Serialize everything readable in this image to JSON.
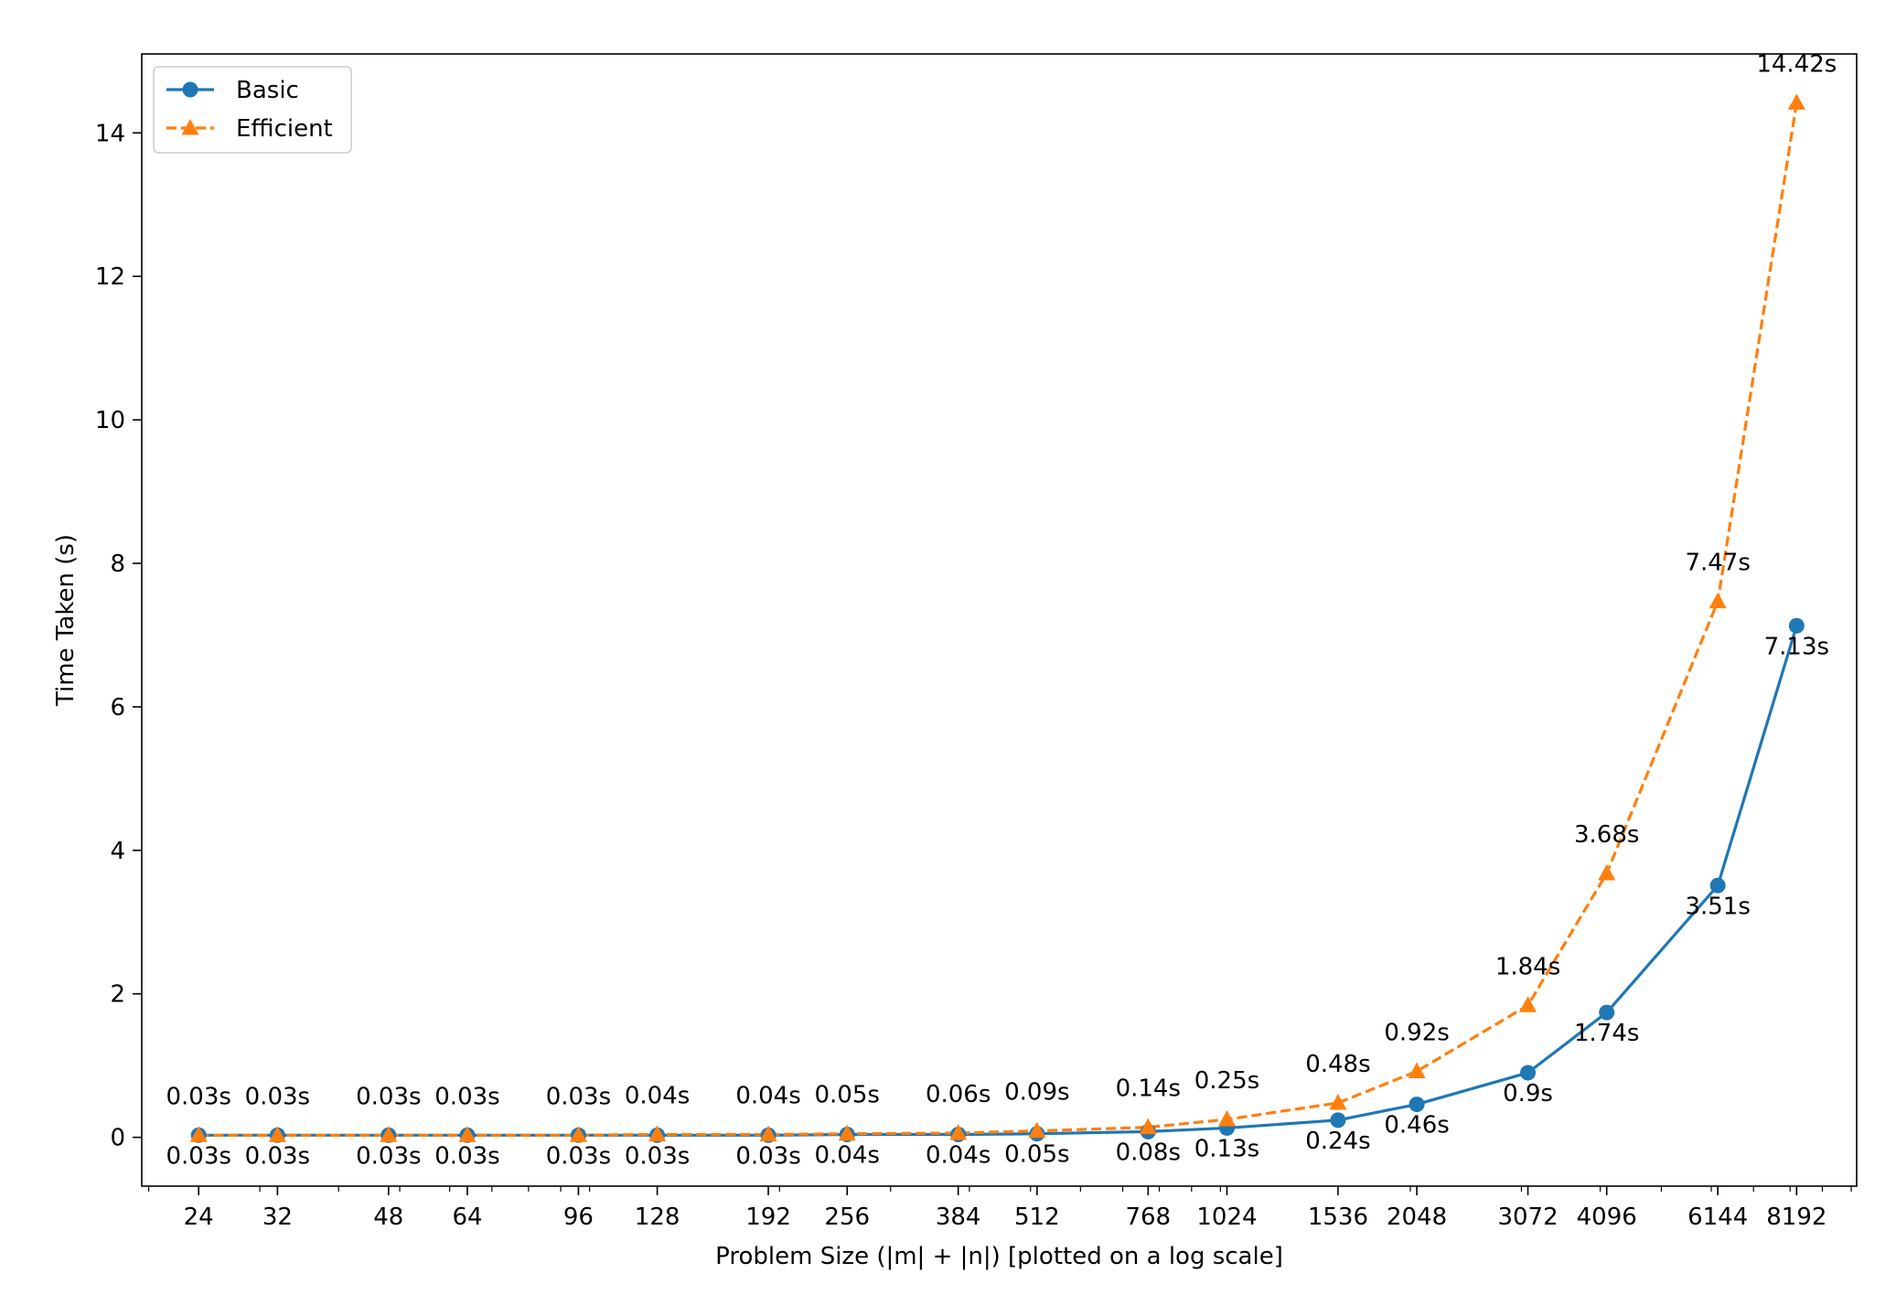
{
  "chart_data": {
    "type": "line",
    "xscale": "log",
    "x": [
      24,
      32,
      48,
      64,
      96,
      128,
      192,
      256,
      384,
      512,
      768,
      1024,
      1536,
      2048,
      3072,
      4096,
      6144,
      8192
    ],
    "x_tick_labels": [
      "24",
      "32",
      "48",
      "64",
      "96",
      "128",
      "192",
      "256",
      "384",
      "512",
      "768",
      "1024",
      "1536",
      "2048",
      "3072",
      "4096",
      "6144",
      "8192"
    ],
    "y_ticks": [
      0,
      2,
      4,
      6,
      8,
      10,
      12,
      14
    ],
    "y_tick_labels": [
      "0",
      "2",
      "4",
      "6",
      "8",
      "10",
      "12",
      "14"
    ],
    "ylim": [
      -0.68,
      15.1
    ],
    "xlim": [
      19.5,
      10200
    ],
    "xlabel": "Problem Size (|m| + |n|) [plotted on a log scale]",
    "ylabel": "Time Taken (s)",
    "legend_position": "top-left",
    "series": [
      {
        "name": "Basic",
        "color": "#1f77b4",
        "marker": "circle",
        "linestyle": "solid",
        "values": [
          0.03,
          0.03,
          0.03,
          0.03,
          0.03,
          0.03,
          0.03,
          0.04,
          0.04,
          0.05,
          0.08,
          0.13,
          0.24,
          0.46,
          0.9,
          1.74,
          3.51,
          7.13
        ],
        "labels": [
          "0.03s",
          "0.03s",
          "0.03s",
          "0.03s",
          "0.03s",
          "0.03s",
          "0.03s",
          "0.04s",
          "0.04s",
          "0.05s",
          "0.08s",
          "0.13s",
          "0.24s",
          "0.46s",
          "0.9s",
          "1.74s",
          "3.51s",
          "7.13s"
        ]
      },
      {
        "name": "Efficient",
        "color": "#ff7f0e",
        "marker": "triangle",
        "linestyle": "dashed",
        "values": [
          0.03,
          0.03,
          0.03,
          0.03,
          0.03,
          0.04,
          0.04,
          0.05,
          0.06,
          0.09,
          0.14,
          0.25,
          0.48,
          0.92,
          1.84,
          3.68,
          7.47,
          14.42
        ],
        "labels": [
          "0.03s",
          "0.03s",
          "0.03s",
          "0.03s",
          "0.03s",
          "0.04s",
          "0.04s",
          "0.05s",
          "0.06s",
          "0.09s",
          "0.14s",
          "0.25s",
          "0.48s",
          "0.92s",
          "1.84s",
          "3.68s",
          "7.47s",
          "14.42s"
        ]
      }
    ]
  }
}
